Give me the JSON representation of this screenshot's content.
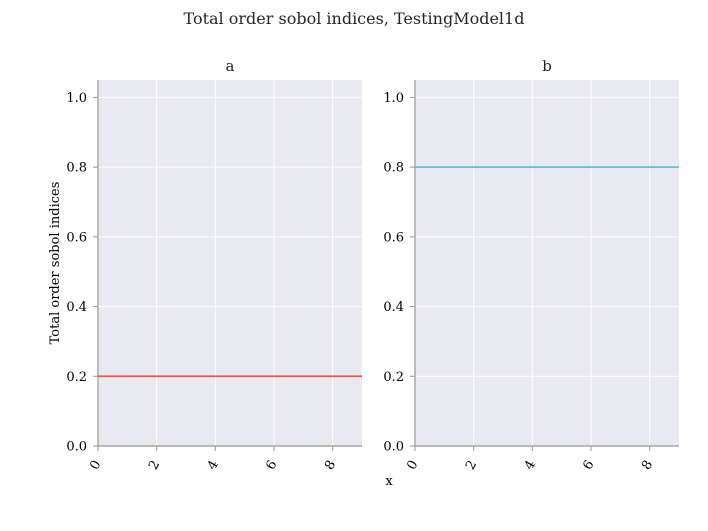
{
  "figure": {
    "title": "Total order sobol indices, TestingModel1d"
  },
  "chart_data": [
    {
      "type": "line",
      "title": "a",
      "ylabel": "Total order sobol indices",
      "xlabel": "",
      "xlim": [
        0,
        9
      ],
      "ylim": [
        0,
        1.05
      ],
      "xticks": [
        0,
        2,
        4,
        6,
        8
      ],
      "yticks": [
        0.0,
        0.2,
        0.4,
        0.6,
        0.8,
        1.0
      ],
      "xtick_labels": [
        "0",
        "2",
        "4",
        "6",
        "8"
      ],
      "ytick_labels": [
        "0.0",
        "0.2",
        "0.4",
        "0.6",
        "0.8",
        "1.0"
      ],
      "grid": true,
      "series": [
        {
          "color": "#e0604a",
          "x": [
            0,
            9
          ],
          "y": [
            0.2,
            0.2
          ]
        }
      ]
    },
    {
      "type": "line",
      "title": "b",
      "ylabel": "",
      "xlabel": "x",
      "xlim": [
        0,
        9
      ],
      "ylim": [
        0,
        1.05
      ],
      "xticks": [
        0,
        2,
        4,
        6,
        8
      ],
      "yticks": [
        0.0,
        0.2,
        0.4,
        0.6,
        0.8,
        1.0
      ],
      "xtick_labels": [
        "0",
        "2",
        "4",
        "6",
        "8"
      ],
      "ytick_labels": [
        "0.0",
        "0.2",
        "0.4",
        "0.6",
        "0.8",
        "1.0"
      ],
      "grid": true,
      "series": [
        {
          "color": "#4fc8dc",
          "x": [
            0,
            9
          ],
          "y": [
            0.8,
            0.8
          ]
        }
      ]
    }
  ]
}
